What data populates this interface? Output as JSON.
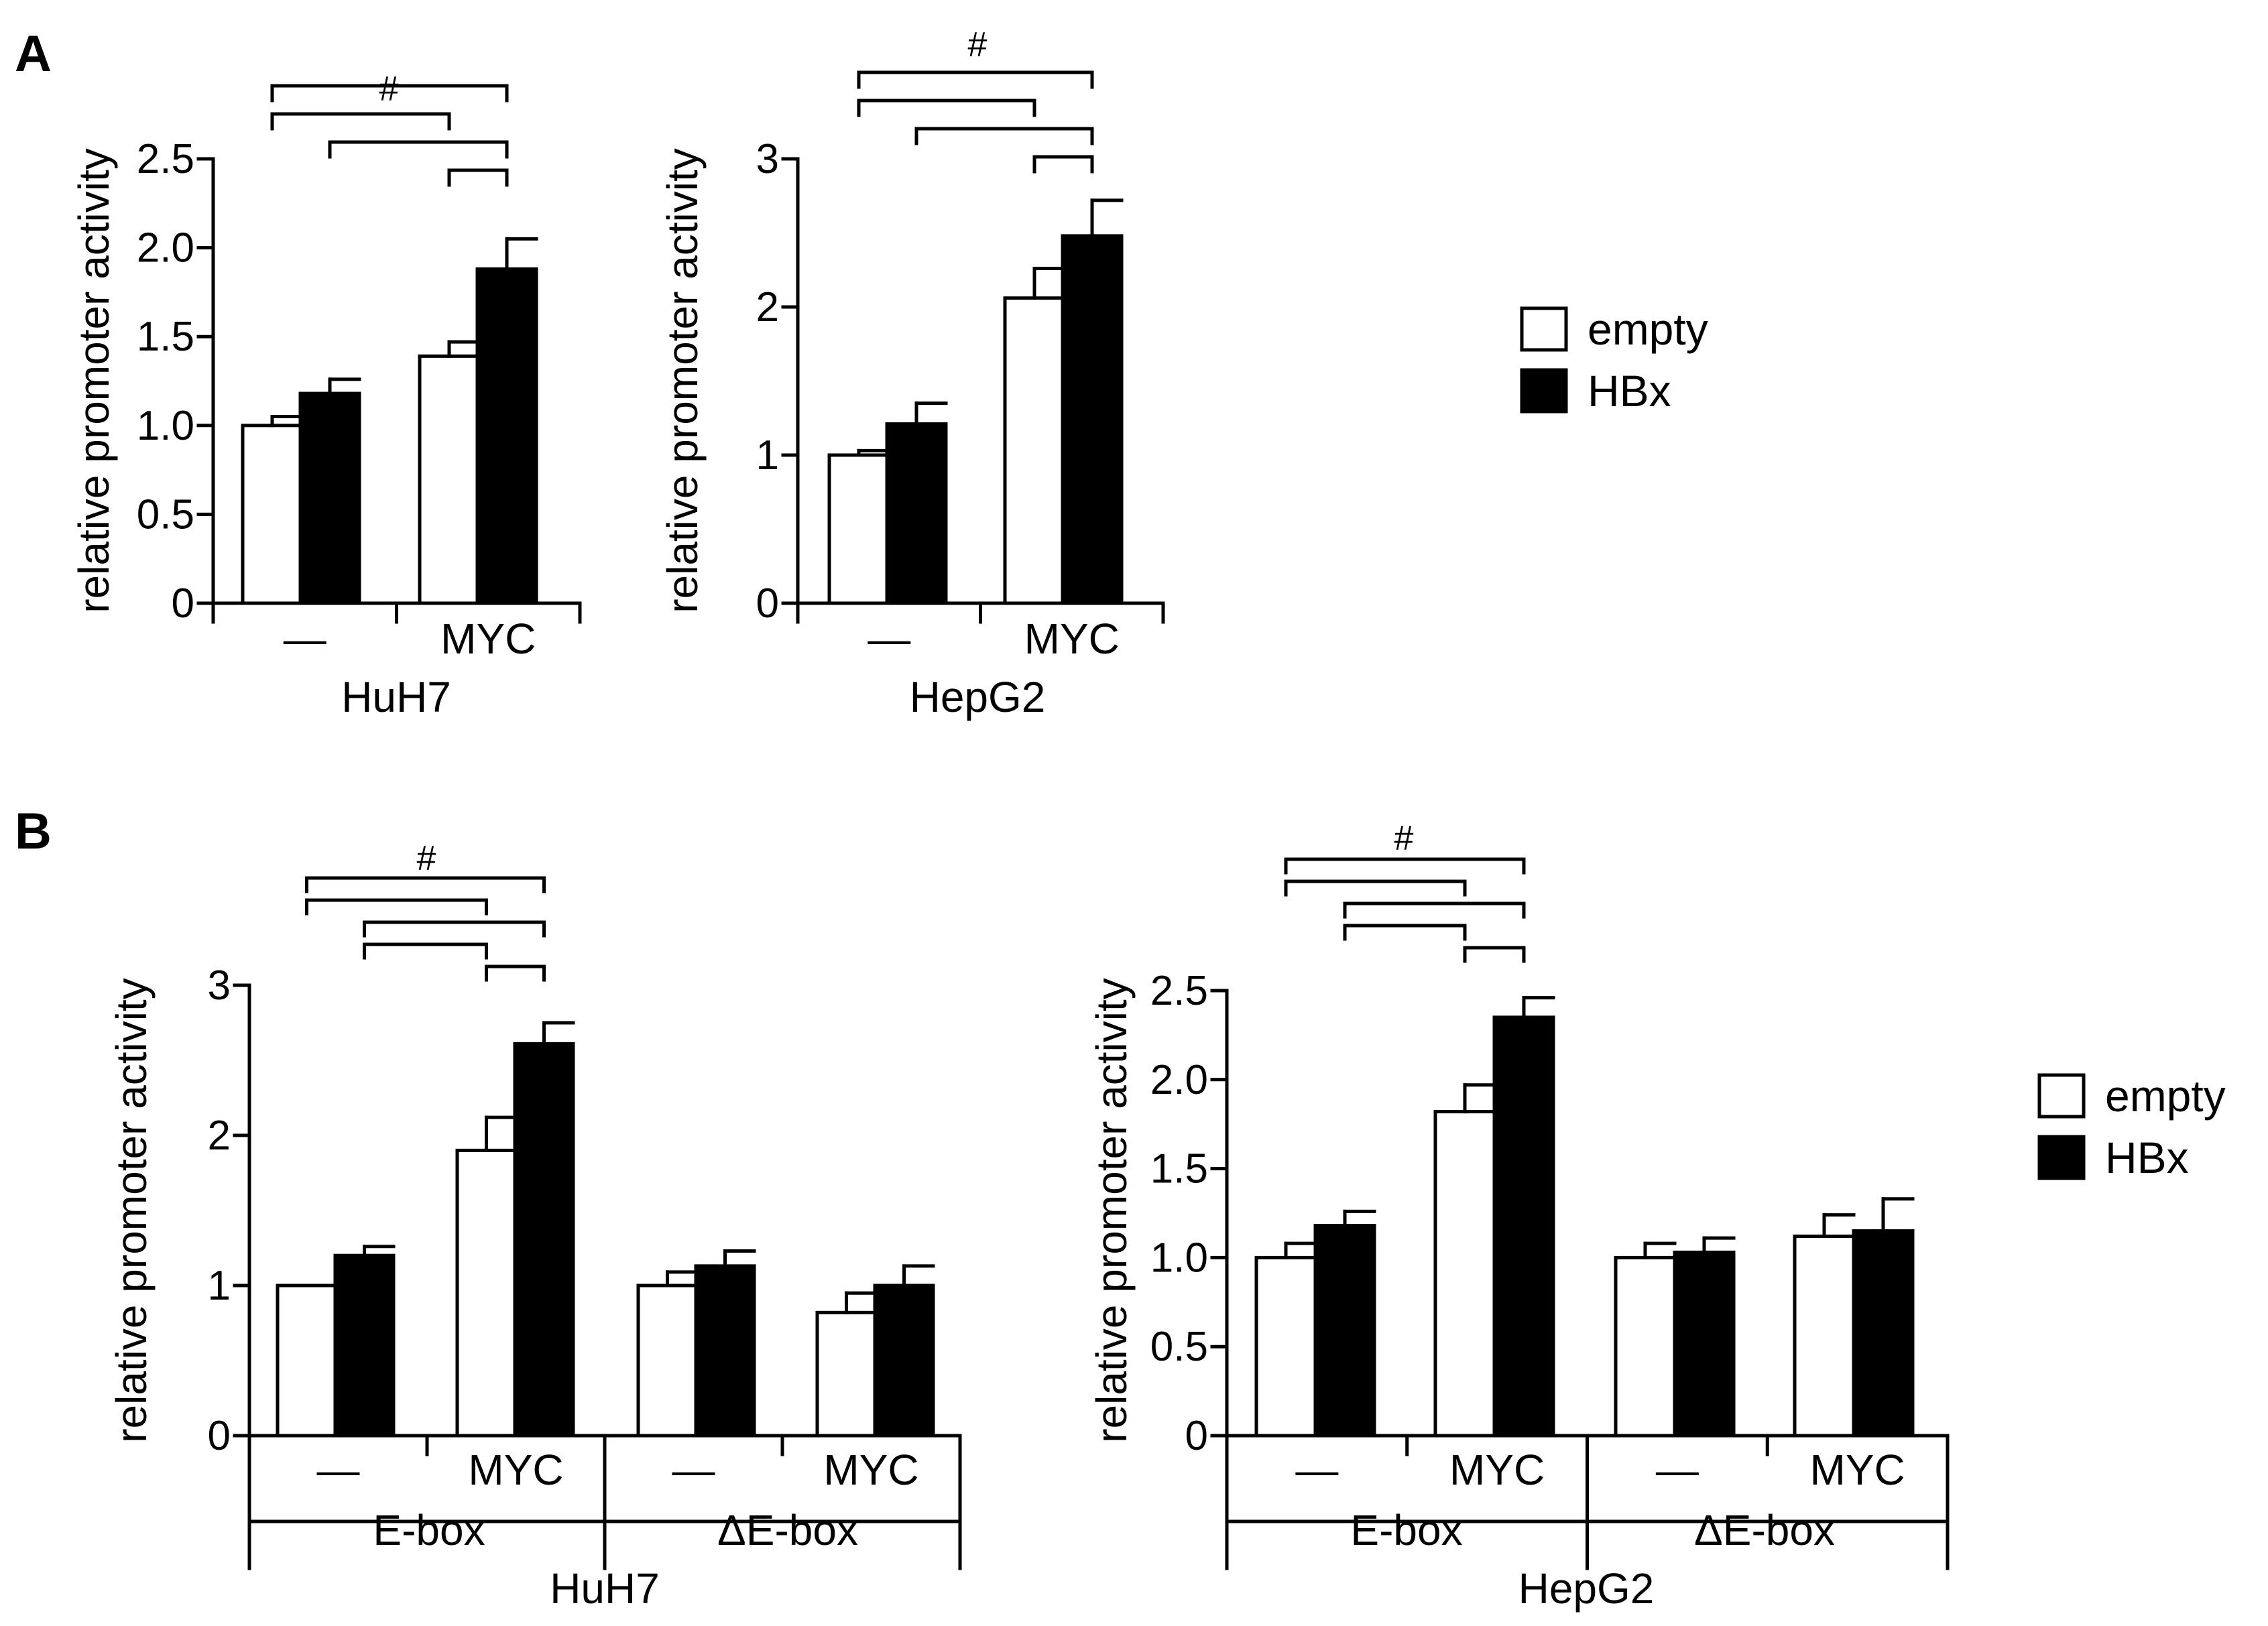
{
  "figure": {
    "panel_letters": [
      "A",
      "B"
    ]
  },
  "colors": {
    "empty": "#ffffff",
    "hbx": "#000000",
    "stroke": "#000000"
  },
  "chart_data": [
    {
      "id": "A_HuH7",
      "panel": "A",
      "type": "bar",
      "ylabel": "relative promoter activity",
      "ylim": [
        0,
        2.5
      ],
      "yticks": [
        "0",
        "0.5",
        "1.0",
        "1.5",
        "2.0",
        "2.5"
      ],
      "categories": [
        "—",
        "MYC"
      ],
      "group_labels": [
        "HuH7"
      ],
      "series": [
        {
          "name": "empty",
          "values": [
            1.0,
            1.39
          ],
          "errors": [
            0.05,
            0.08
          ]
        },
        {
          "name": "HBx",
          "values": [
            1.18,
            1.88
          ],
          "errors": [
            0.08,
            0.17
          ]
        }
      ],
      "significance_symbol": "#",
      "brackets": [
        {
          "from": [
            0,
            0
          ],
          "to": [
            1,
            1
          ]
        },
        {
          "from": [
            0,
            0
          ],
          "to": [
            1,
            0
          ]
        },
        {
          "from": [
            0,
            1
          ],
          "to": [
            1,
            1
          ]
        },
        {
          "from": [
            1,
            0
          ],
          "to": [
            1,
            1
          ]
        }
      ]
    },
    {
      "id": "A_HepG2",
      "panel": "A",
      "type": "bar",
      "ylabel": "relative promoter activity",
      "ylim": [
        0,
        3
      ],
      "yticks": [
        "0",
        "1",
        "2",
        "3"
      ],
      "categories": [
        "—",
        "MYC"
      ],
      "group_labels": [
        "HepG2"
      ],
      "series": [
        {
          "name": "empty",
          "values": [
            1.0,
            2.06
          ],
          "errors": [
            0.03,
            0.2
          ]
        },
        {
          "name": "HBx",
          "values": [
            1.21,
            2.48
          ],
          "errors": [
            0.14,
            0.24
          ]
        }
      ],
      "significance_symbol": "#",
      "brackets": [
        {
          "from": [
            0,
            0
          ],
          "to": [
            1,
            1
          ]
        },
        {
          "from": [
            0,
            0
          ],
          "to": [
            1,
            0
          ]
        },
        {
          "from": [
            0,
            1
          ],
          "to": [
            1,
            1
          ]
        },
        {
          "from": [
            1,
            0
          ],
          "to": [
            1,
            1
          ]
        }
      ]
    },
    {
      "id": "B_HuH7",
      "panel": "B",
      "type": "bar",
      "ylabel": "relative promoter activity",
      "ylim": [
        0,
        3
      ],
      "yticks": [
        "0",
        "1",
        "2",
        "3"
      ],
      "categories": [
        "—",
        "MYC",
        "—",
        "MYC"
      ],
      "group_labels": [
        "E-box",
        "ΔE-box"
      ],
      "xlabel": "HuH7",
      "series": [
        {
          "name": "empty",
          "values": [
            1.0,
            1.9,
            1.0,
            0.82
          ],
          "errors": [
            0.0,
            0.22,
            0.09,
            0.13
          ]
        },
        {
          "name": "HBx",
          "values": [
            1.2,
            2.61,
            1.13,
            1.0
          ],
          "errors": [
            0.06,
            0.14,
            0.1,
            0.13
          ]
        }
      ],
      "significance_symbol": "#",
      "brackets": [
        {
          "from": [
            0,
            0
          ],
          "to": [
            1,
            1
          ]
        },
        {
          "from": [
            0,
            0
          ],
          "to": [
            1,
            0
          ]
        },
        {
          "from": [
            0,
            1
          ],
          "to": [
            1,
            1
          ]
        },
        {
          "from": [
            0,
            1
          ],
          "to": [
            1,
            0
          ]
        },
        {
          "from": [
            1,
            0
          ],
          "to": [
            1,
            1
          ]
        }
      ]
    },
    {
      "id": "B_HepG2",
      "panel": "B",
      "type": "bar",
      "ylabel": "relative promoter activity",
      "ylim": [
        0,
        2.5
      ],
      "yticks": [
        "0",
        "0.5",
        "1.0",
        "1.5",
        "2.0",
        "2.5"
      ],
      "categories": [
        "—",
        "MYC",
        "—",
        "MYC"
      ],
      "group_labels": [
        "E-box",
        "ΔE-box"
      ],
      "xlabel": "HepG2",
      "series": [
        {
          "name": "empty",
          "values": [
            1.0,
            1.82,
            1.0,
            1.12
          ],
          "errors": [
            0.08,
            0.15,
            0.08,
            0.12
          ]
        },
        {
          "name": "HBx",
          "values": [
            1.18,
            2.35,
            1.03,
            1.15
          ],
          "errors": [
            0.08,
            0.11,
            0.08,
            0.18
          ]
        }
      ],
      "significance_symbol": "#",
      "brackets": [
        {
          "from": [
            0,
            0
          ],
          "to": [
            1,
            1
          ]
        },
        {
          "from": [
            0,
            0
          ],
          "to": [
            1,
            0
          ]
        },
        {
          "from": [
            0,
            1
          ],
          "to": [
            1,
            1
          ]
        },
        {
          "from": [
            0,
            1
          ],
          "to": [
            1,
            0
          ]
        },
        {
          "from": [
            1,
            0
          ],
          "to": [
            1,
            1
          ]
        }
      ]
    }
  ],
  "legends": [
    {
      "items": [
        {
          "label": "empty",
          "color": "#ffffff"
        },
        {
          "label": "HBx",
          "color": "#000000"
        }
      ]
    },
    {
      "items": [
        {
          "label": "empty",
          "color": "#ffffff"
        },
        {
          "label": "HBx",
          "color": "#000000"
        }
      ]
    }
  ]
}
